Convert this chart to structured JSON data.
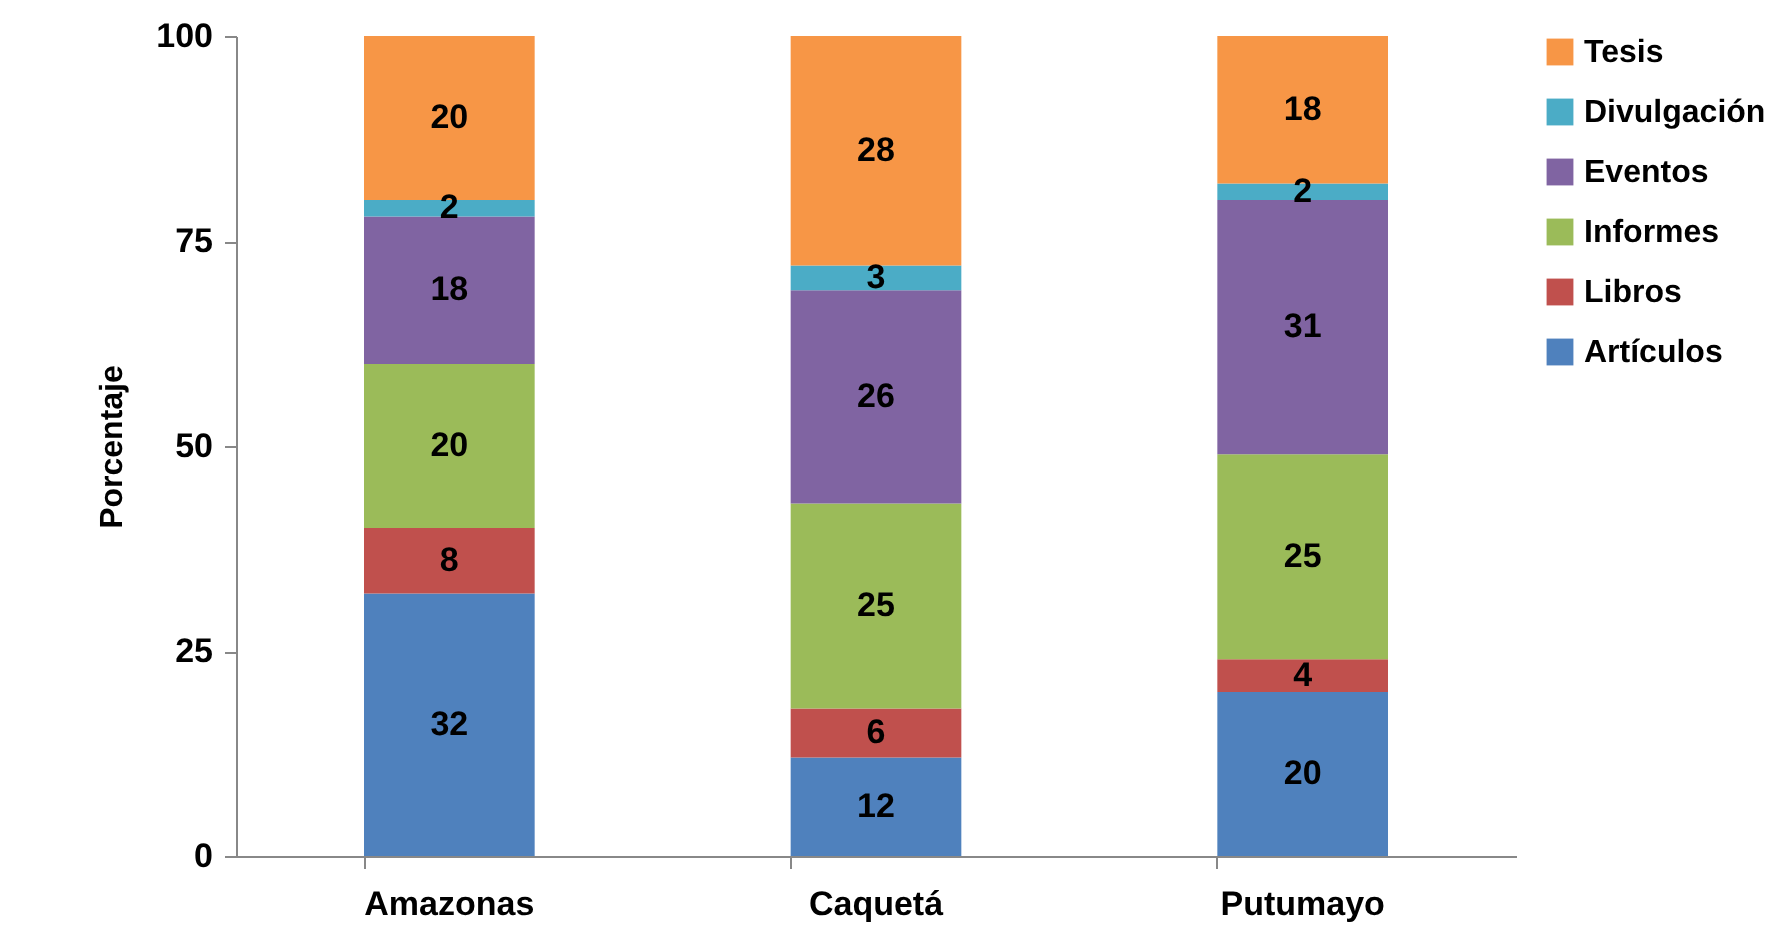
{
  "chart_data": {
    "type": "bar",
    "stacked": true,
    "ylabel": "Porcentaje",
    "categories": [
      "Amazonas",
      "Caquetá",
      "Putumayo"
    ],
    "series": [
      {
        "name": "Artículos",
        "color": "#4f81bd",
        "values": [
          32,
          12,
          20
        ]
      },
      {
        "name": "Libros",
        "color": "#c0504d",
        "values": [
          8,
          6,
          4
        ]
      },
      {
        "name": "Informes",
        "color": "#9bbb59",
        "values": [
          20,
          25,
          25
        ]
      },
      {
        "name": "Eventos",
        "color": "#8064a2",
        "values": [
          18,
          26,
          31
        ]
      },
      {
        "name": "Divulgación",
        "color": "#4bacc6",
        "values": [
          2,
          3,
          2
        ]
      },
      {
        "name": "Tesis",
        "color": "#f79646",
        "values": [
          20,
          28,
          18
        ]
      }
    ],
    "ylim": [
      0,
      100
    ],
    "yticks": [
      0,
      25,
      50,
      75,
      100
    ],
    "data_labels": true,
    "legend": "right",
    "grid": false
  }
}
